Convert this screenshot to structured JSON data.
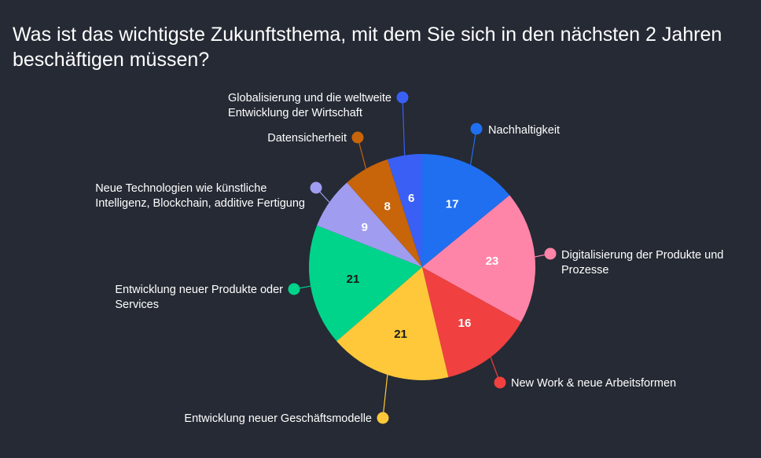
{
  "chart_data": {
    "type": "pie",
    "title": "Was ist das wichtigste Zukunftsthema, mit dem Sie sich in den nächsten 2 Jahren beschäftigen müssen?",
    "slices": [
      {
        "label": "Nachhaltigkeit",
        "value": 17,
        "color": "#1f6ff0",
        "value_color": "#ffffff"
      },
      {
        "label": "Digitalisierung der Produkte und Prozesse",
        "value": 23,
        "color": "#ff85a8",
        "value_color": "#ffffff"
      },
      {
        "label": "New Work & neue Arbeitsformen",
        "value": 16,
        "color": "#f04040",
        "value_color": "#ffffff"
      },
      {
        "label": "Entwicklung neuer Geschäftsmodelle",
        "value": 21,
        "color": "#ffc83a",
        "value_color": "#1a1a1a"
      },
      {
        "label": "Entwicklung neuer Produkte oder Services",
        "value": 21,
        "color": "#00d48a",
        "value_color": "#1a1a1a"
      },
      {
        "label": "Neue Technologien wie künstliche Intelligenz, Blockchain, additive Fertigung",
        "value": 9,
        "color": "#a09cf0",
        "value_color": "#ffffff"
      },
      {
        "label": "Datensicherheit",
        "value": 8,
        "color": "#c8640a",
        "value_color": "#ffffff"
      },
      {
        "label": "Globalisierung und die weltweite Entwicklung der Wirtschaft",
        "value": 6,
        "color": "#3a5ff5",
        "value_color": "#ffffff"
      }
    ]
  }
}
